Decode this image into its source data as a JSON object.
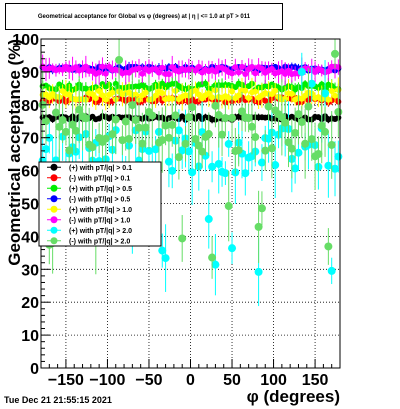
{
  "chart_data": {
    "type": "scatter",
    "title": "Geometrical acceptance for Global vs φ (degrees) at | η | <= 1.0 at pT > 011",
    "xlabel": "φ (degrees)",
    "ylabel": "Geometrical acceptance (%)",
    "xlim": [
      -180,
      180
    ],
    "ylim": [
      0,
      100
    ],
    "x_ticks": [
      "−150",
      "−100",
      "−50",
      "0",
      "50",
      "100",
      "150"
    ],
    "x_tick_values": [
      -150,
      -100,
      -50,
      0,
      50,
      100,
      150
    ],
    "y_ticks": [
      "0",
      "10",
      "20",
      "30",
      "40",
      "50",
      "60",
      "70",
      "80",
      "90",
      "100"
    ],
    "y_tick_values": [
      0,
      10,
      20,
      30,
      40,
      50,
      60,
      70,
      80,
      90,
      100
    ],
    "grid": true,
    "legend_position": "left-middle",
    "series": [
      {
        "name": "(+) with pT/|q| > 0.1",
        "color": "#000000",
        "mean": 76.0,
        "spread": 0.6,
        "err": 0.8
      },
      {
        "name": "(-) with pT/|q| > 0.1",
        "color": "#ff0000",
        "mean": 81.5,
        "spread": 0.8,
        "err": 1.0
      },
      {
        "name": "(+) with pT/|q| > 0.5",
        "color": "#00ee00",
        "mean": 85.5,
        "spread": 1.0,
        "err": 1.5
      },
      {
        "name": "(-) with pT/|q| > 0.5",
        "color": "#0000ff",
        "mean": 91.0,
        "spread": 0.6,
        "err": 1.0
      },
      {
        "name": "(+) with pT/|q| > 1.0",
        "color": "#ffff00",
        "mean": 83.0,
        "spread": 1.5,
        "err": 3.0
      },
      {
        "name": "(-) with pT/|q| > 1.0",
        "color": "#ff00ff",
        "mean": 90.5,
        "spread": 1.2,
        "err": 2.5
      },
      {
        "name": "(+) with pT/|q| > 2.0",
        "color": "#00ffff",
        "mean": 66.0,
        "spread": 7.0,
        "err": 7.0
      },
      {
        "name": "(-) with pT/|q| > 2.0",
        "color": "#66dd66",
        "mean": 72.0,
        "spread": 8.0,
        "err": 8.0
      }
    ],
    "bins": 90
  },
  "footer": "Tue Dec 21 21:55:15 2021"
}
